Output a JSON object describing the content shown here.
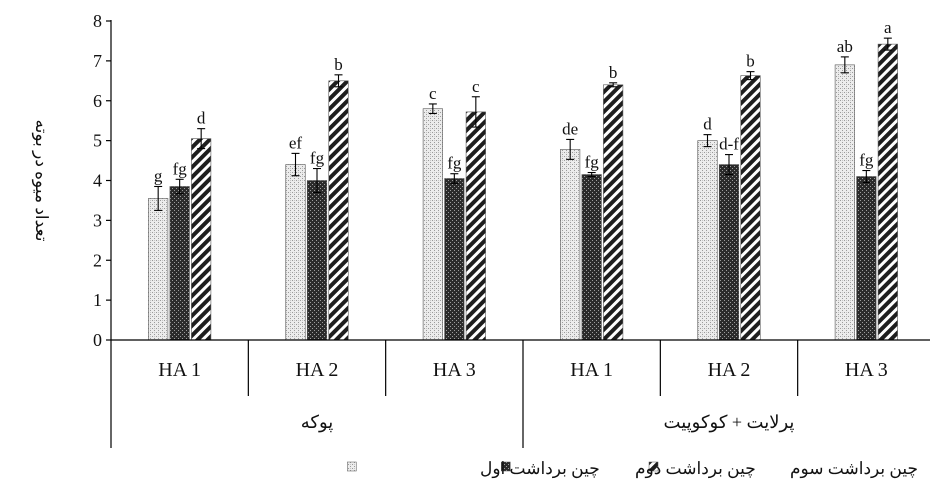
{
  "chart_data": {
    "type": "bar",
    "ylabel": "تعداد میوه در بوته",
    "ylim": [
      0,
      8
    ],
    "yticks": [
      0,
      1,
      2,
      3,
      4,
      5,
      6,
      7,
      8
    ],
    "categories": [
      "HA 1",
      "HA 2",
      "HA 3",
      "HA 1",
      "HA 2",
      "HA 3"
    ],
    "groups": [
      {
        "label": "پوکه",
        "span": [
          0,
          2
        ]
      },
      {
        "label": "پرلایت + کوکوپیت",
        "span": [
          3,
          5
        ]
      }
    ],
    "series": [
      {
        "name": "چین برداشت اول",
        "values": [
          3.55,
          4.4,
          5.8,
          4.78,
          5.0,
          6.9
        ],
        "errors": [
          0.3,
          0.28,
          0.12,
          0.25,
          0.15,
          0.2
        ],
        "letters": [
          "g",
          "ef",
          "c",
          "de",
          "d",
          "ab"
        ]
      },
      {
        "name": "چین برداشت دوم",
        "values": [
          3.85,
          4.0,
          4.05,
          4.15,
          4.4,
          4.1
        ],
        "errors": [
          0.18,
          0.3,
          0.12,
          0.05,
          0.25,
          0.15
        ],
        "letters": [
          "fg",
          "fg",
          "fg",
          "fg",
          "d-f",
          "fg"
        ]
      },
      {
        "name": "چین برداشت سوم",
        "values": [
          5.05,
          6.5,
          5.72,
          6.4,
          6.63,
          7.42
        ],
        "errors": [
          0.25,
          0.15,
          0.38,
          0.05,
          0.1,
          0.15
        ],
        "letters": [
          "d",
          "b",
          "c",
          "b",
          "b",
          "a"
        ]
      }
    ],
    "legend_position": "bottom",
    "grid": false
  }
}
